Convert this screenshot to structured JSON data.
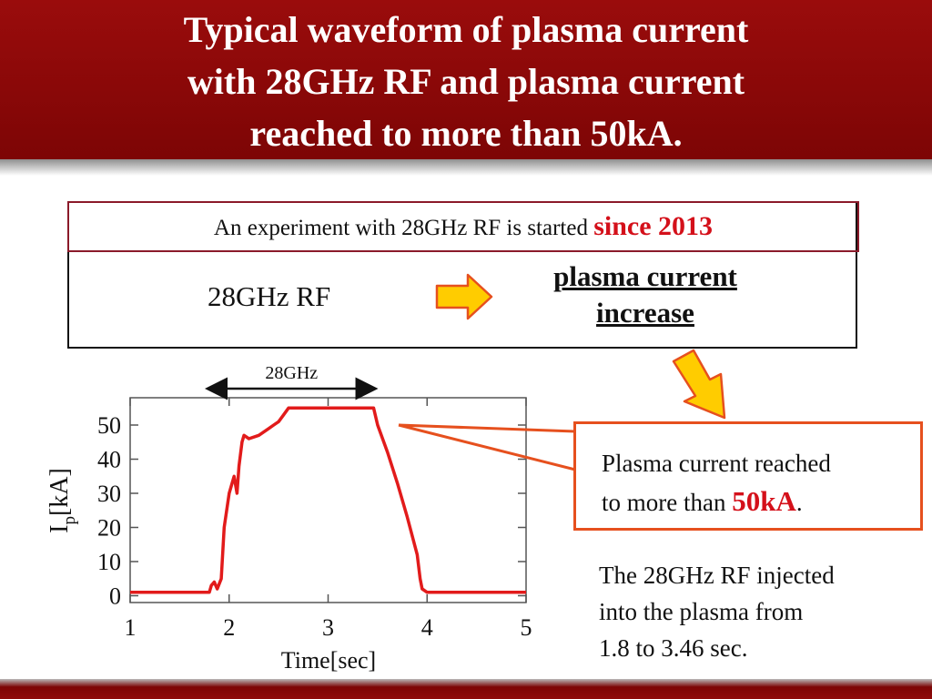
{
  "title": {
    "line1": "Typical waveform of plasma current",
    "line2": "with  28GHz RF and plasma current",
    "line3": "reached to more than 50kA."
  },
  "info": {
    "intro": "An experiment with 28GHz RF is started ",
    "since": "since 2013",
    "rf_label": "28GHz RF",
    "result_line1": "plasma current",
    "result_line2": "increase"
  },
  "callout": {
    "line1": "Plasma current reached",
    "line2_prefix": "to more than ",
    "value": "50kA",
    "line2_suffix": "."
  },
  "note": {
    "line1": "The 28GHz RF injected",
    "line2": "into the plasma from",
    "line3": "1.8 to 3.46 sec."
  },
  "colors": {
    "banner": "#8b0808",
    "trace": "#e21b1b",
    "callout_border": "#e6501e",
    "highlight": "#d4101a",
    "arrow_fill": "#ffcc00",
    "arrow_border": "#e6501e"
  },
  "chart_data": {
    "type": "line",
    "xlabel": "Time[sec]",
    "ylabel": "I",
    "ylabel_sub": "p",
    "ylabel_unit": "[kA]",
    "xlim": [
      1,
      5
    ],
    "ylim": [
      -2,
      58
    ],
    "xticks": [
      1,
      2,
      3,
      4,
      5
    ],
    "yticks": [
      0,
      10,
      20,
      30,
      40,
      50
    ],
    "grid": false,
    "rf_annotation": {
      "label": "28GHz",
      "x_start": 1.8,
      "x_end": 3.46
    },
    "series": [
      {
        "x": [
          1.0,
          1.5,
          1.8,
          1.82,
          1.85,
          1.88,
          1.92,
          1.95,
          2.0,
          2.05,
          2.08,
          2.1,
          2.13,
          2.15,
          2.2,
          2.3,
          2.4,
          2.45,
          2.5,
          2.55,
          2.6,
          2.65,
          3.0,
          3.3,
          3.46,
          3.5,
          3.6,
          3.7,
          3.8,
          3.9,
          3.93,
          3.95,
          4.0,
          4.5,
          5.0
        ],
        "y": [
          1,
          1,
          1,
          3,
          4,
          2,
          5,
          20,
          30,
          35,
          30,
          38,
          45,
          47,
          46,
          47,
          49,
          50,
          51,
          53,
          55,
          55,
          55,
          55,
          55,
          50,
          42,
          33,
          23,
          12,
          5,
          2,
          1,
          1,
          1
        ]
      }
    ]
  }
}
